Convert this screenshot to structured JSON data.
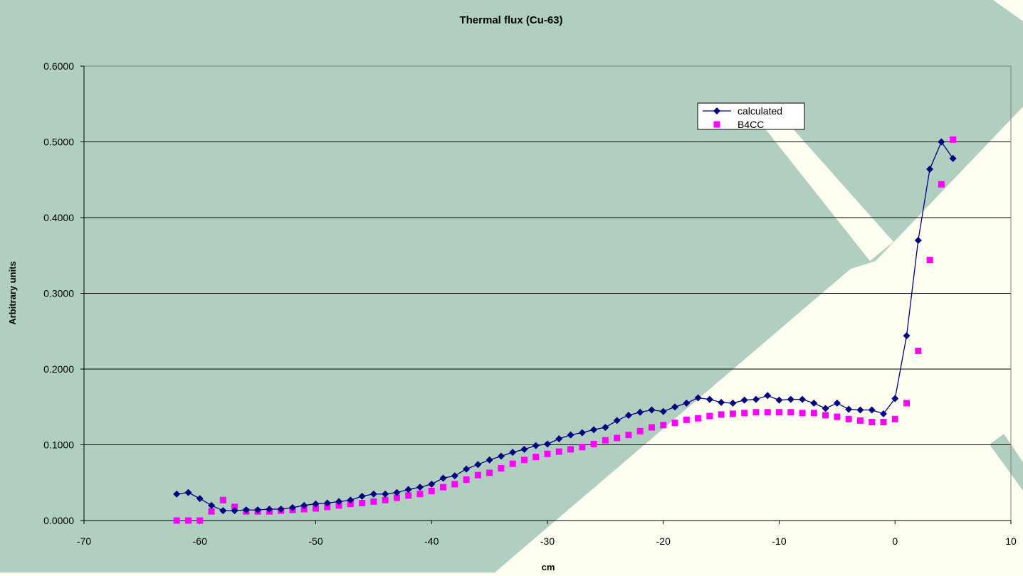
{
  "chart_data": {
    "type": "line",
    "title": "Thermal flux (Cu-63)",
    "xlabel": "cm",
    "ylabel": "Arbitrary units",
    "xlim": [
      -70,
      10
    ],
    "ylim": [
      0,
      0.6
    ],
    "x_ticks": [
      "-70",
      "-60",
      "-50",
      "-40",
      "-30",
      "-20",
      "-10",
      "0",
      "10"
    ],
    "y_ticks": [
      "0.0000",
      "0.1000",
      "0.2000",
      "0.3000",
      "0.4000",
      "0.5000",
      "0.6000"
    ],
    "grid": "horizontal",
    "legend_position": "top-right",
    "series": [
      {
        "name": "calculated",
        "style": "line-with-diamond-markers",
        "color": "#000080",
        "x": [
          -62,
          -61,
          -60,
          -59,
          -58,
          -57,
          -56,
          -55,
          -54,
          -53,
          -52,
          -51,
          -50,
          -49,
          -48,
          -47,
          -46,
          -45,
          -44,
          -43,
          -42,
          -41,
          -40,
          -39,
          -38,
          -37,
          -36,
          -35,
          -34,
          -33,
          -32,
          -31,
          -30,
          -29,
          -28,
          -27,
          -26,
          -25,
          -24,
          -23,
          -22,
          -21,
          -20,
          -19,
          -18,
          -17,
          -16,
          -15,
          -14,
          -13,
          -12,
          -11,
          -10,
          -9,
          -8,
          -7,
          -6,
          -5,
          -4,
          -3,
          -2,
          -1,
          0,
          1,
          2,
          3,
          4,
          5
        ],
        "y": [
          0.035,
          0.037,
          0.029,
          0.02,
          0.013,
          0.013,
          0.014,
          0.014,
          0.015,
          0.015,
          0.017,
          0.02,
          0.022,
          0.023,
          0.025,
          0.027,
          0.032,
          0.035,
          0.035,
          0.037,
          0.041,
          0.044,
          0.048,
          0.056,
          0.059,
          0.068,
          0.074,
          0.08,
          0.085,
          0.09,
          0.094,
          0.099,
          0.101,
          0.108,
          0.113,
          0.116,
          0.12,
          0.123,
          0.132,
          0.139,
          0.143,
          0.146,
          0.144,
          0.15,
          0.155,
          0.162,
          0.16,
          0.156,
          0.155,
          0.159,
          0.16,
          0.165,
          0.159,
          0.16,
          0.16,
          0.155,
          0.148,
          0.155,
          0.147,
          0.146,
          0.146,
          0.141,
          0.161,
          0.244,
          0.37,
          0.464,
          0.5,
          0.478
        ]
      },
      {
        "name": "B4CC",
        "style": "square-markers",
        "color": "#ff00ff",
        "x": [
          -62,
          -61,
          -60,
          -59,
          -58,
          -57,
          -56,
          -55,
          -54,
          -53,
          -52,
          -51,
          -50,
          -49,
          -48,
          -47,
          -46,
          -45,
          -44,
          -43,
          -42,
          -41,
          -40,
          -39,
          -38,
          -37,
          -36,
          -35,
          -34,
          -33,
          -32,
          -31,
          -30,
          -29,
          -28,
          -27,
          -26,
          -25,
          -24,
          -23,
          -22,
          -21,
          -20,
          -19,
          -18,
          -17,
          -16,
          -15,
          -14,
          -13,
          -12,
          -11,
          -10,
          -9,
          -8,
          -7,
          -6,
          -5,
          -4,
          -3,
          -2,
          -1,
          0,
          1,
          2,
          3,
          4,
          5
        ],
        "y": [
          0.0,
          0.0,
          0.0,
          0.012,
          0.027,
          0.018,
          0.012,
          0.012,
          0.012,
          0.013,
          0.014,
          0.015,
          0.016,
          0.018,
          0.02,
          0.022,
          0.023,
          0.025,
          0.027,
          0.03,
          0.033,
          0.035,
          0.039,
          0.044,
          0.048,
          0.054,
          0.06,
          0.063,
          0.069,
          0.075,
          0.08,
          0.084,
          0.088,
          0.091,
          0.094,
          0.097,
          0.101,
          0.106,
          0.109,
          0.113,
          0.118,
          0.123,
          0.126,
          0.129,
          0.133,
          0.135,
          0.138,
          0.14,
          0.141,
          0.142,
          0.143,
          0.143,
          0.143,
          0.143,
          0.142,
          0.142,
          0.139,
          0.137,
          0.134,
          0.132,
          0.13,
          0.13,
          0.134,
          0.155,
          0.224,
          0.344,
          0.444,
          0.503
        ]
      }
    ]
  },
  "colors": {
    "background_light": "#fefef1",
    "background_teal": "#b0cfc0",
    "gridline": "#000000"
  }
}
